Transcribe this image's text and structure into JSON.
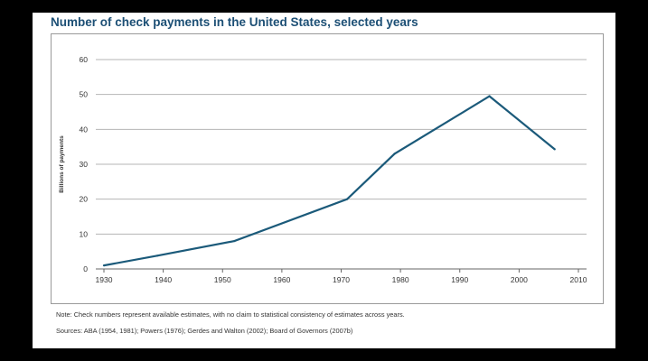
{
  "figure": {
    "title": "Number of check payments in the United States, selected years",
    "note": "Note: Check numbers represent available estimates, with no claim to statistical consistency of estimates across years.",
    "sources": "Sources: ABA (1954, 1981); Powers (1976); Gerdes and Walton (2002); Board of Governors (2007b)"
  },
  "colors": {
    "title": "#1c4f75",
    "line": "#1b5a7a",
    "grid": "#b5b5b5",
    "axis": "#666666"
  },
  "chart_data": {
    "type": "line",
    "title": "Number of check payments in the United States, selected years",
    "xlabel": "",
    "ylabel": "Billions of payments",
    "xlim": [
      1930,
      2010
    ],
    "ylim": [
      0,
      60
    ],
    "xticks": [
      1930,
      1940,
      1950,
      1960,
      1970,
      1980,
      1990,
      2000,
      2010
    ],
    "yticks": [
      0,
      10,
      20,
      30,
      40,
      50,
      60
    ],
    "grid": "horizontal",
    "series": [
      {
        "x": [
          1930,
          1939,
          1952,
          1971,
          1979,
          1995,
          2006
        ],
        "y": [
          1.0,
          3.8,
          8.0,
          20.0,
          33.0,
          49.5,
          34.3
        ]
      }
    ]
  }
}
